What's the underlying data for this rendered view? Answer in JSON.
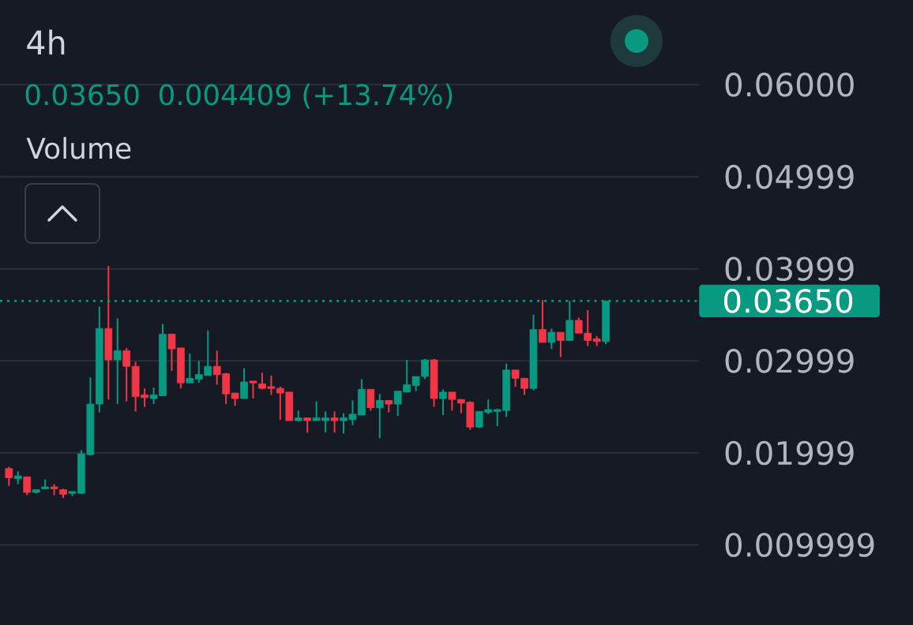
{
  "chart_data": {
    "type": "candlestick",
    "title": "4h",
    "annotations": [
      "0.03650",
      "0.004409 (+13.74%)",
      "Volume"
    ],
    "categories": [
      null,
      null,
      null,
      null,
      null,
      null,
      null,
      null,
      null,
      null,
      null,
      null,
      null,
      null,
      null,
      null,
      null,
      null,
      null,
      null,
      null,
      null,
      null,
      null,
      null,
      null,
      null,
      null,
      null,
      null,
      null,
      null,
      null,
      null,
      null,
      null,
      null,
      null,
      null,
      null,
      null,
      null,
      null,
      null,
      null,
      null,
      null,
      null,
      null,
      null,
      null,
      null,
      null,
      null,
      null,
      null,
      null,
      null,
      null,
      null,
      null,
      null,
      null,
      null,
      null,
      null,
      null
    ],
    "ohlc": [
      [
        0.0183,
        0.0185,
        0.0164,
        0.0173
      ],
      [
        0.0172,
        0.018,
        0.0166,
        0.0175
      ],
      [
        0.0174,
        0.0174,
        0.0154,
        0.0157
      ],
      [
        0.0157,
        0.016,
        0.0156,
        0.016
      ],
      [
        0.0161,
        0.0171,
        0.0161,
        0.0163
      ],
      [
        0.0163,
        0.0166,
        0.0154,
        0.0161
      ],
      [
        0.016,
        0.0161,
        0.0151,
        0.0155
      ],
      [
        0.0156,
        0.0158,
        0.0153,
        0.0158
      ],
      [
        0.0156,
        0.0203,
        0.0156,
        0.0199
      ],
      [
        0.0198,
        0.0282,
        0.0197,
        0.0253
      ],
      [
        0.0253,
        0.0359,
        0.0244,
        0.0335
      ],
      [
        0.0335,
        0.0403,
        0.0258,
        0.0301
      ],
      [
        0.0301,
        0.0346,
        0.0253,
        0.0311
      ],
      [
        0.0311,
        0.0314,
        0.0256,
        0.0294
      ],
      [
        0.0294,
        0.0299,
        0.0245,
        0.0261
      ],
      [
        0.0263,
        0.027,
        0.025,
        0.026
      ],
      [
        0.0259,
        0.0271,
        0.0253,
        0.0263
      ],
      [
        0.0262,
        0.034,
        0.0262,
        0.0329
      ],
      [
        0.0329,
        0.0329,
        0.0289,
        0.0313
      ],
      [
        0.0314,
        0.0314,
        0.027,
        0.0276
      ],
      [
        0.0276,
        0.0308,
        0.0276,
        0.0281
      ],
      [
        0.028,
        0.03,
        0.0276,
        0.0285
      ],
      [
        0.0284,
        0.0333,
        0.0284,
        0.0294
      ],
      [
        0.0294,
        0.0311,
        0.0274,
        0.0285
      ],
      [
        0.0286,
        0.0287,
        0.0253,
        0.0264
      ],
      [
        0.0265,
        0.0265,
        0.0251,
        0.0259
      ],
      [
        0.0259,
        0.0292,
        0.0259,
        0.0277
      ],
      [
        0.0278,
        0.0278,
        0.0259,
        0.0276
      ],
      [
        0.0275,
        0.0287,
        0.0269,
        0.027
      ],
      [
        0.0272,
        0.0284,
        0.0263,
        0.027
      ],
      [
        0.027,
        0.0272,
        0.0236,
        0.0265
      ],
      [
        0.0266,
        0.0266,
        0.0235,
        0.0235
      ],
      [
        0.0235,
        0.0246,
        0.0234,
        0.0238
      ],
      [
        0.0238,
        0.0238,
        0.0222,
        0.0235
      ],
      [
        0.0235,
        0.0256,
        0.0235,
        0.0238
      ],
      [
        0.0235,
        0.0245,
        0.0222,
        0.0238
      ],
      [
        0.0238,
        0.0245,
        0.0222,
        0.0235
      ],
      [
        0.0235,
        0.0243,
        0.0221,
        0.0238
      ],
      [
        0.0236,
        0.0257,
        0.023,
        0.0242
      ],
      [
        0.0241,
        0.028,
        0.0241,
        0.0269
      ],
      [
        0.0269,
        0.0269,
        0.0246,
        0.0249
      ],
      [
        0.0249,
        0.0264,
        0.0216,
        0.0257
      ],
      [
        0.0257,
        0.0257,
        0.0244,
        0.0253
      ],
      [
        0.0253,
        0.0267,
        0.024,
        0.0267
      ],
      [
        0.0266,
        0.0301,
        0.0266,
        0.0274
      ],
      [
        0.0273,
        0.0283,
        0.0267,
        0.0283
      ],
      [
        0.0283,
        0.0302,
        0.028,
        0.0301
      ],
      [
        0.0301,
        0.0302,
        0.025,
        0.0259
      ],
      [
        0.0259,
        0.0269,
        0.0241,
        0.0266
      ],
      [
        0.0266,
        0.0266,
        0.0246,
        0.0258
      ],
      [
        0.0258,
        0.0258,
        0.0243,
        0.0254
      ],
      [
        0.0255,
        0.0256,
        0.0225,
        0.0228
      ],
      [
        0.0228,
        0.0245,
        0.0227,
        0.0245
      ],
      [
        0.0244,
        0.0258,
        0.0242,
        0.0247
      ],
      [
        0.0245,
        0.0248,
        0.0229,
        0.0247
      ],
      [
        0.0246,
        0.0297,
        0.0239,
        0.029
      ],
      [
        0.029,
        0.029,
        0.0272,
        0.0281
      ],
      [
        0.0281,
        0.0281,
        0.0263,
        0.027
      ],
      [
        0.027,
        0.035,
        0.0268,
        0.0334
      ],
      [
        0.0334,
        0.0366,
        0.032,
        0.032
      ],
      [
        0.032,
        0.0335,
        0.0313,
        0.0331
      ],
      [
        0.0331,
        0.0331,
        0.0304,
        0.0322
      ],
      [
        0.0322,
        0.0365,
        0.0322,
        0.0344
      ],
      [
        0.0344,
        0.0347,
        0.033,
        0.033
      ],
      [
        0.033,
        0.0355,
        0.0316,
        0.0322
      ],
      [
        0.0324,
        0.0327,
        0.0316,
        0.0321
      ],
      [
        0.0321,
        0.0365,
        0.0318,
        0.0365
      ]
    ],
    "colors": [
      "#f23645",
      "#089981",
      "#f23645",
      "#089981",
      "#089981",
      "#f23645",
      "#f23645",
      "#089981",
      "#089981",
      "#089981",
      "#089981",
      "#f23645",
      "#089981",
      "#f23645",
      "#f23645",
      "#f23645",
      "#089981",
      "#089981",
      "#f23645",
      "#f23645",
      "#089981",
      "#089981",
      "#089981",
      "#f23645",
      "#f23645",
      "#f23645",
      "#089981",
      "#f23645",
      "#f23645",
      "#f23645",
      "#f23645",
      "#f23645",
      "#089981",
      "#f23645",
      "#089981",
      "#089981",
      "#f23645",
      "#089981",
      "#089981",
      "#089981",
      "#f23645",
      "#089981",
      "#f23645",
      "#089981",
      "#089981",
      "#089981",
      "#089981",
      "#f23645",
      "#089981",
      "#f23645",
      "#f23645",
      "#f23645",
      "#089981",
      "#089981",
      "#089981",
      "#089981",
      "#f23645",
      "#f23645",
      "#089981",
      "#f23645",
      "#089981",
      "#f23645",
      "#089981",
      "#f23645",
      "#f23645",
      "#f23645",
      "#089981"
    ],
    "ylim": [
      0.0013,
      0.0692
    ],
    "yticks": [
      {
        "value": 0.06,
        "label": "0.06000"
      },
      {
        "value": 0.04999,
        "label": "0.04999"
      },
      {
        "value": 0.03999,
        "label": "0.03999"
      },
      {
        "value": 0.02999,
        "label": "0.02999"
      },
      {
        "value": 0.01999,
        "label": "0.01999"
      },
      {
        "value": 0.009999,
        "label": "0.009999"
      }
    ],
    "grid": "y",
    "ref_lines": [
      {
        "axis": "y",
        "value": 0.0365,
        "label": "0.03650",
        "color": "#089981",
        "line_style": "dotted"
      }
    ]
  }
}
